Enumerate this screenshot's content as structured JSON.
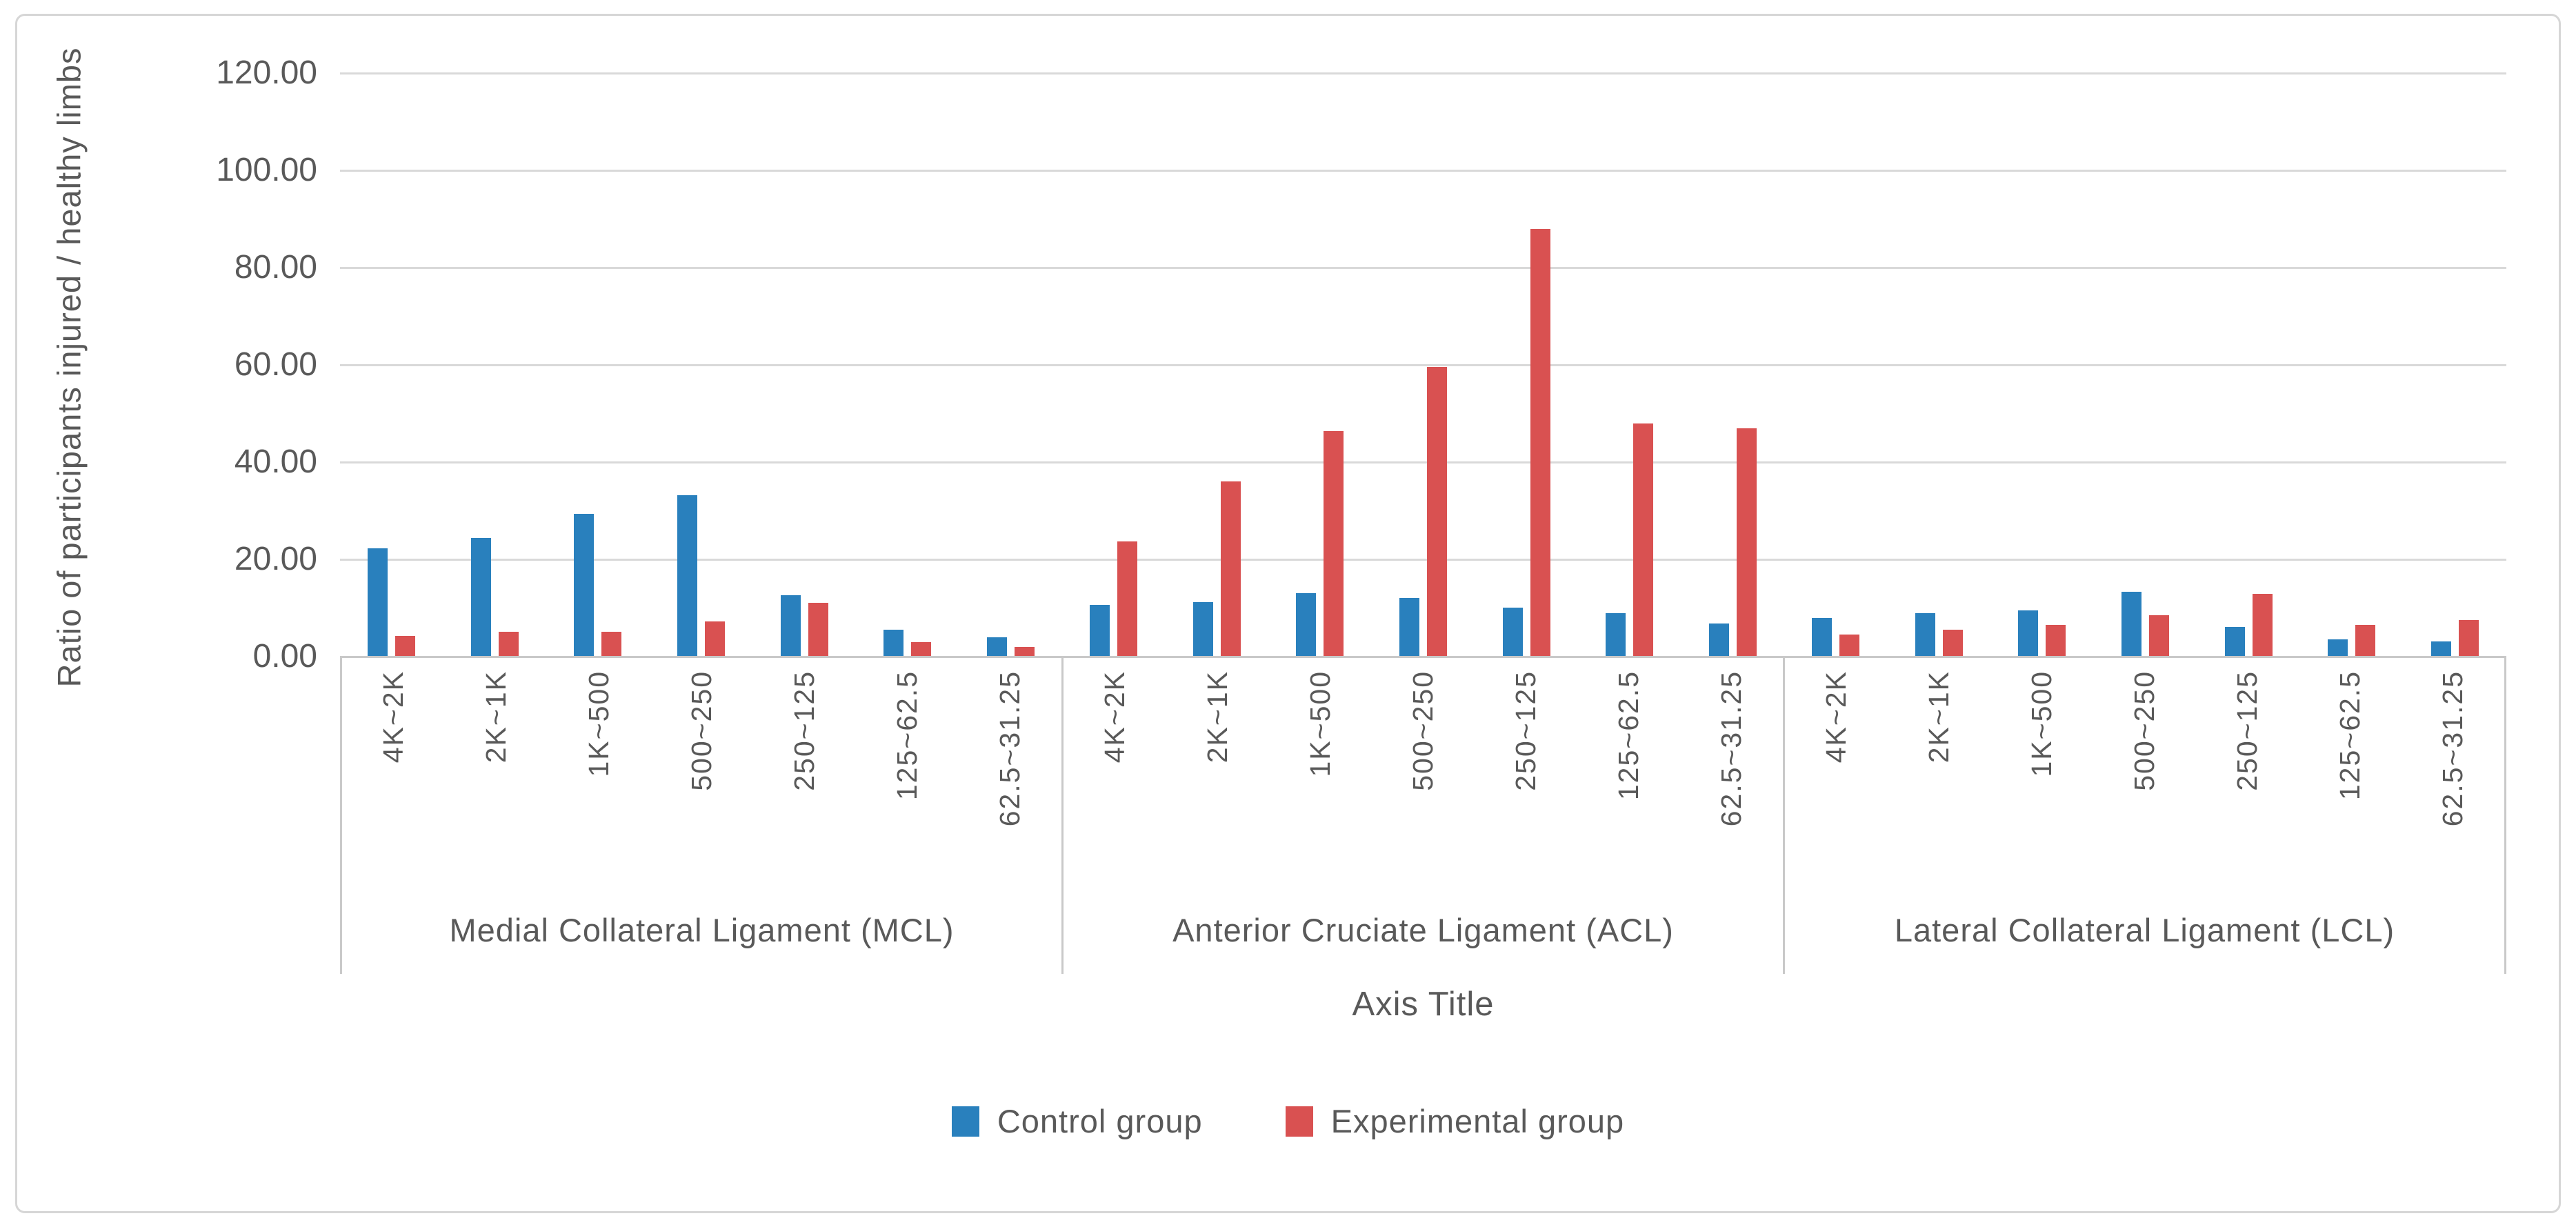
{
  "chart_data": {
    "type": "bar",
    "title": "",
    "xlabel": "Axis Title",
    "ylabel": "Ratio of participants injured / healthy limbs",
    "ylim": [
      0,
      120
    ],
    "y_tick_step": 20,
    "y_tick_labels": [
      "0.00",
      "20.00",
      "40.00",
      "60.00",
      "80.00",
      "100.00",
      "120.00"
    ],
    "grid": true,
    "legend_position": "bottom",
    "group_labels": [
      "Medial Collateral Ligament (MCL)",
      "Anterior Cruciate Ligament (ACL)",
      "Lateral Collateral Ligament (LCL)"
    ],
    "categories": [
      "4K~2K",
      "2K~1K",
      "1K~500",
      "500~250",
      "250~125",
      "125~62.5",
      "62.5~31.25"
    ],
    "series": [
      {
        "name": "Control group",
        "color": "#2980bd",
        "values": [
          [
            22.3,
            24.4,
            29.3,
            33.2,
            12.6,
            5.5,
            4.0
          ],
          [
            10.7,
            11.2,
            13.1,
            12.1,
            10.1,
            8.9,
            6.8
          ],
          [
            8.0,
            9.0,
            9.5,
            13.4,
            6.1,
            3.6,
            3.1
          ]
        ]
      },
      {
        "name": "Experimental group",
        "color": "#d95151",
        "values": [
          [
            4.2,
            5.1,
            5.1,
            7.2,
            11.0,
            3.0,
            2.0
          ],
          [
            23.7,
            36.0,
            46.4,
            59.6,
            88.0,
            47.9,
            46.9
          ],
          [
            4.6,
            5.6,
            6.5,
            8.5,
            12.9,
            6.5,
            7.5
          ]
        ]
      }
    ],
    "colors": {
      "gridline": "#d9d9d9",
      "axis_line": "#c9c9c9",
      "text": "#595959"
    }
  }
}
